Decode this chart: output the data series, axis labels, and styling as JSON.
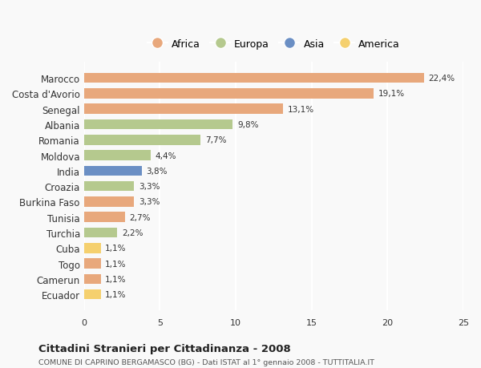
{
  "countries": [
    "Marocco",
    "Costa d'Avorio",
    "Senegal",
    "Albania",
    "Romania",
    "Moldova",
    "India",
    "Croazia",
    "Burkina Faso",
    "Tunisia",
    "Turchia",
    "Cuba",
    "Togo",
    "Camerun",
    "Ecuador"
  ],
  "values": [
    22.4,
    19.1,
    13.1,
    9.8,
    7.7,
    4.4,
    3.8,
    3.3,
    3.3,
    2.7,
    2.2,
    1.1,
    1.1,
    1.1,
    1.1
  ],
  "labels": [
    "22,4%",
    "19,1%",
    "13,1%",
    "9,8%",
    "7,7%",
    "4,4%",
    "3,8%",
    "3,3%",
    "3,3%",
    "2,7%",
    "2,2%",
    "1,1%",
    "1,1%",
    "1,1%",
    "1,1%"
  ],
  "continents": [
    "Africa",
    "Africa",
    "Africa",
    "Europa",
    "Europa",
    "Europa",
    "Asia",
    "Europa",
    "Africa",
    "Africa",
    "Europa",
    "America",
    "Africa",
    "Africa",
    "America"
  ],
  "continent_colors": {
    "Africa": "#E8A87C",
    "Europa": "#B5C98E",
    "Asia": "#6B8FC4",
    "America": "#F5D06E"
  },
  "legend_order": [
    "Africa",
    "Europa",
    "Asia",
    "America"
  ],
  "title1": "Cittadini Stranieri per Cittadinanza - 2008",
  "title2": "COMUNE DI CAPRINO BERGAMASCO (BG) - Dati ISTAT al 1° gennaio 2008 - TUTTITALIA.IT",
  "xlim": [
    0,
    25
  ],
  "xticks": [
    0,
    5,
    10,
    15,
    20,
    25
  ],
  "background_color": "#f9f9f9",
  "grid_color": "#ffffff"
}
